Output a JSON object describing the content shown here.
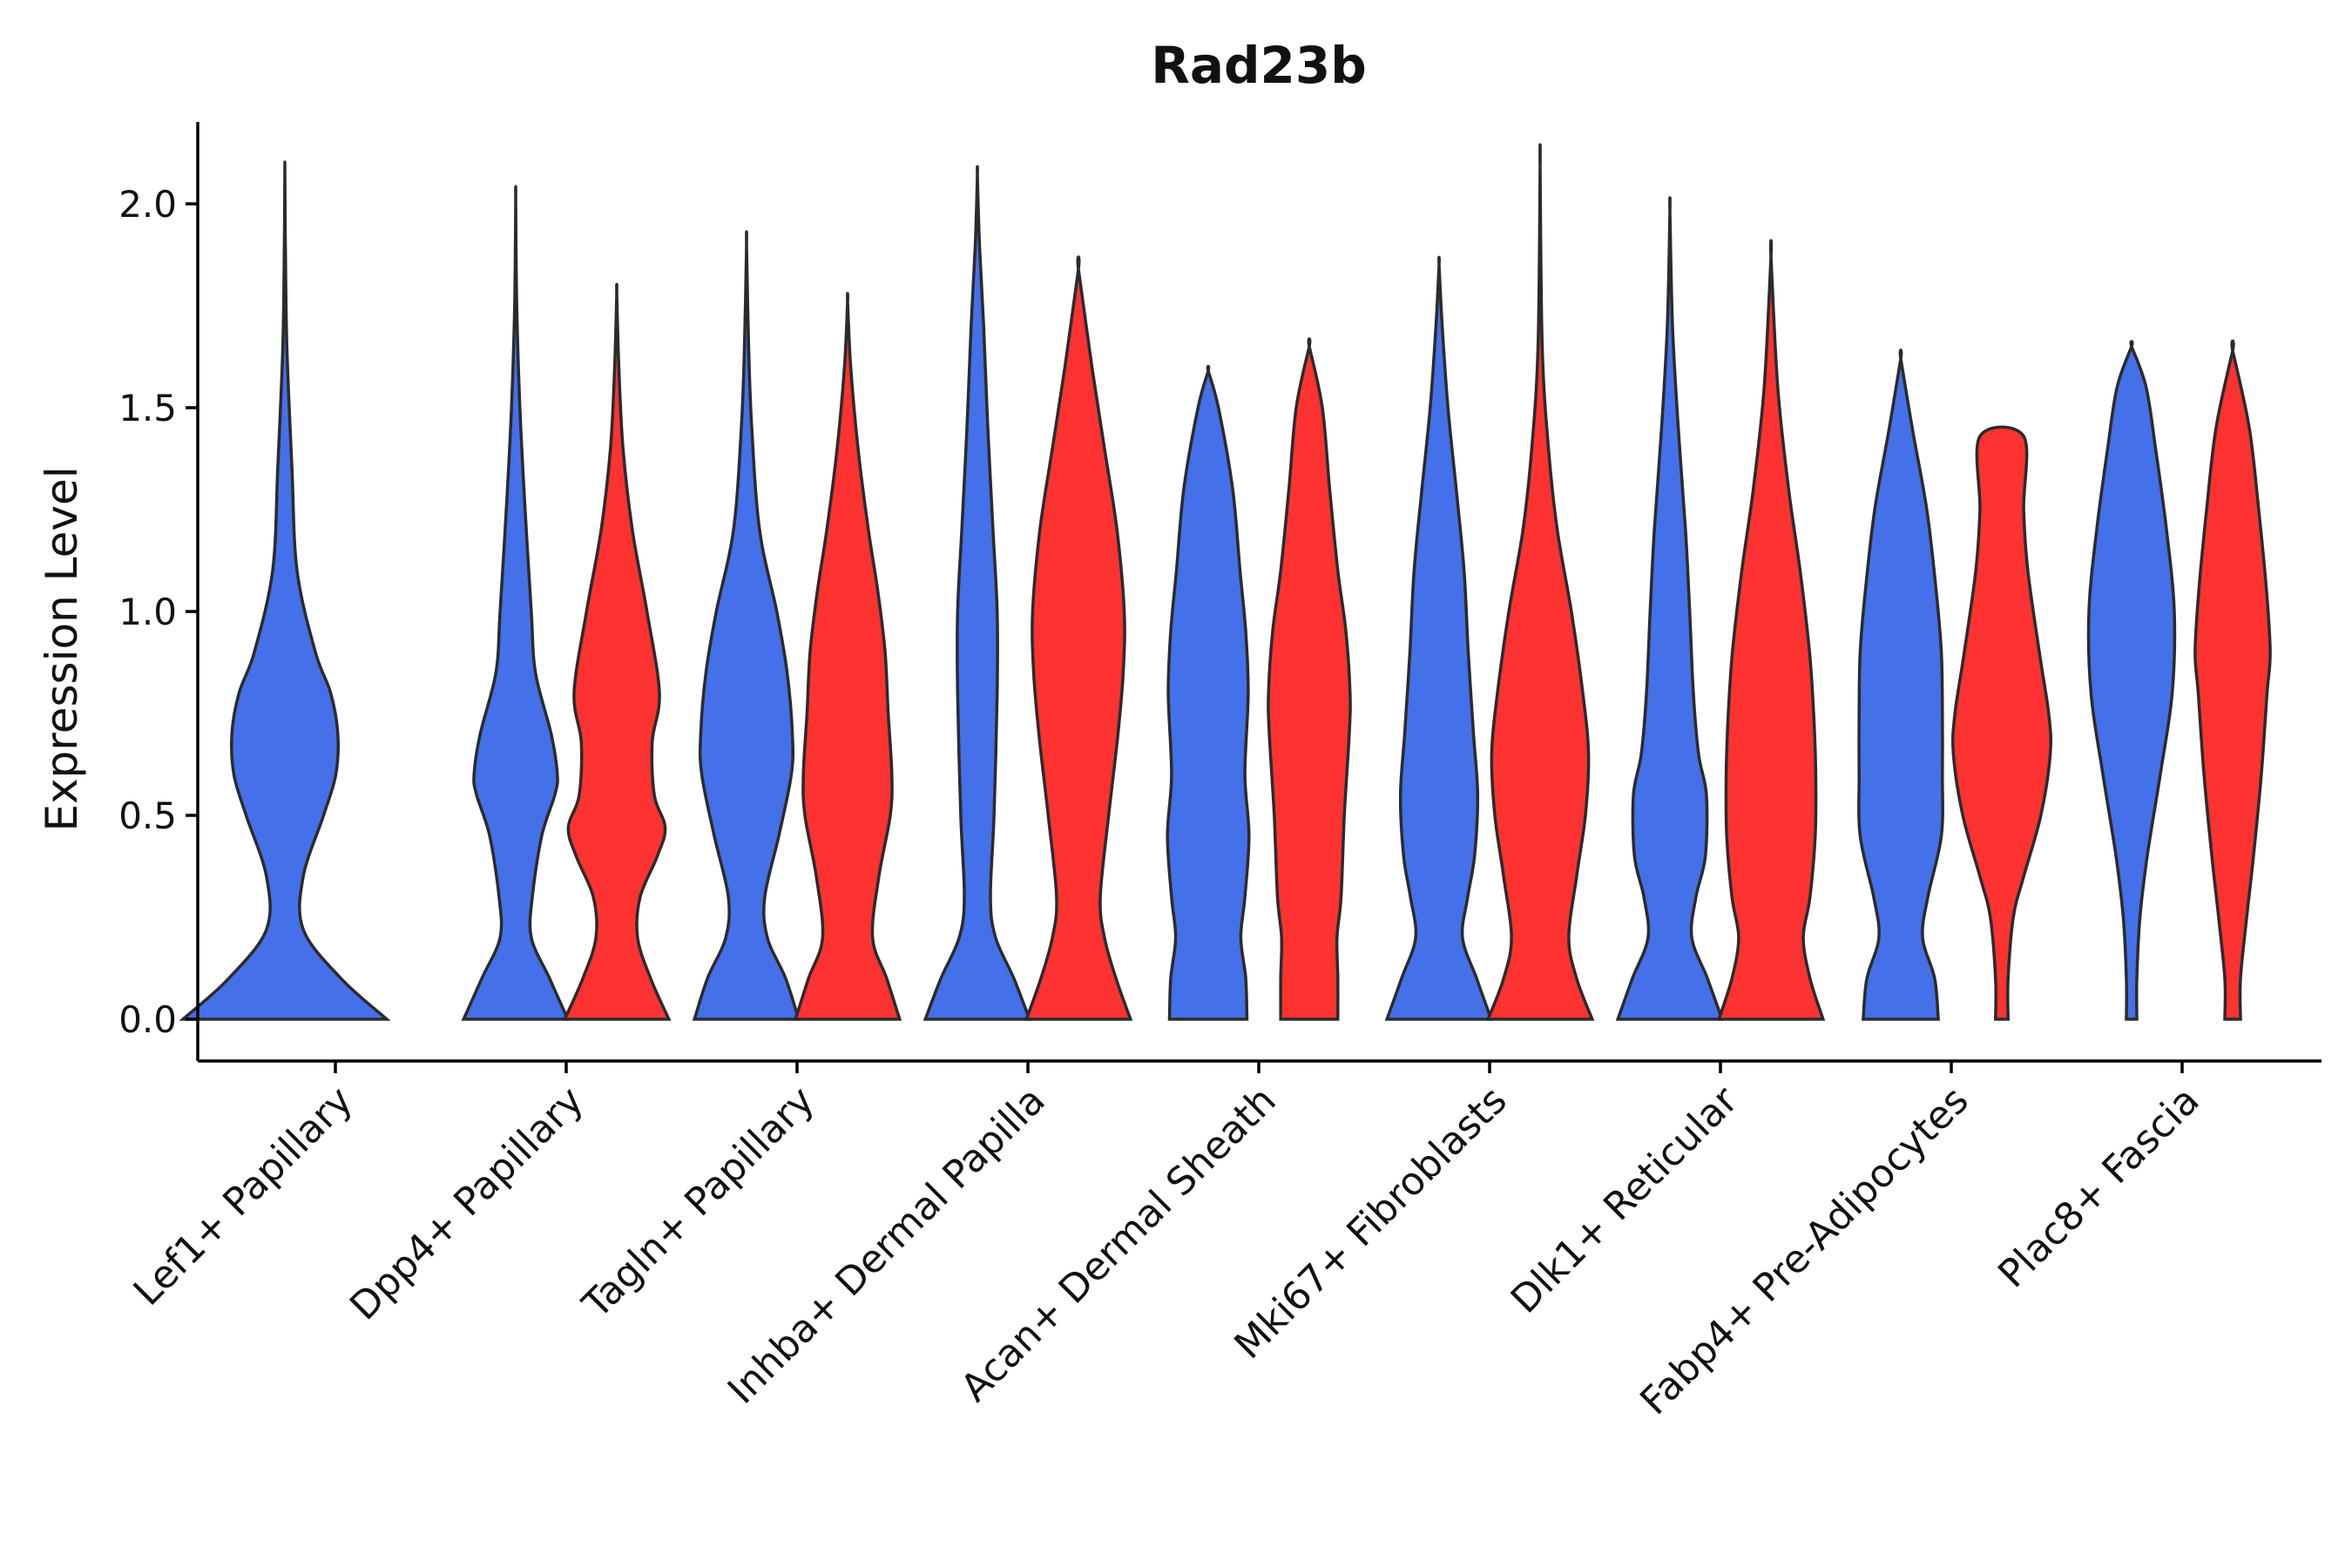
{
  "chart_data": {
    "type": "violin",
    "title": "Rad23b",
    "xlabel": "",
    "ylabel": "Expression Level",
    "ylim": [
      -0.1,
      2.2
    ],
    "yticks": [
      "0.0",
      "0.5",
      "1.0",
      "1.5",
      "2.0"
    ],
    "categories": [
      "Lef1+ Papillary",
      "Dpp4+ Papillary",
      "Tagln+ Papillary",
      "Inhba+ Dermal Papilla",
      "Acan+ Dermal Sheath",
      "Mki67+ Fibroblasts",
      "Dlk1+ Reticular",
      "Fabp4+ Pre-Adipocytes",
      "Plac8+ Fascia"
    ],
    "series_colors": [
      "#4470ea",
      "#ff3232"
    ],
    "violins": [
      {
        "category": 0,
        "split": "blue",
        "max": 2.08,
        "halfwidth": 0.45,
        "profile": [
          [
            0,
            1.0
          ],
          [
            0.1,
            0.55
          ],
          [
            0.22,
            0.18
          ],
          [
            0.35,
            0.18
          ],
          [
            0.5,
            0.38
          ],
          [
            0.6,
            0.5
          ],
          [
            0.7,
            0.52
          ],
          [
            0.8,
            0.45
          ],
          [
            0.9,
            0.3
          ],
          [
            1.1,
            0.12
          ],
          [
            1.35,
            0.07
          ],
          [
            1.65,
            0.02
          ],
          [
            1.9,
            0.005
          ],
          [
            2.08,
            0.0
          ]
        ]
      },
      {
        "category": 1,
        "split": "blue",
        "max": 2.01,
        "halfwidth": 0.23,
        "profile": [
          [
            0,
            1.0
          ],
          [
            0.1,
            0.65
          ],
          [
            0.2,
            0.3
          ],
          [
            0.3,
            0.32
          ],
          [
            0.45,
            0.5
          ],
          [
            0.55,
            0.75
          ],
          [
            0.6,
            0.8
          ],
          [
            0.7,
            0.68
          ],
          [
            0.85,
            0.38
          ],
          [
            1.0,
            0.3
          ],
          [
            1.25,
            0.18
          ],
          [
            1.5,
            0.08
          ],
          [
            1.75,
            0.02
          ],
          [
            2.01,
            0.0
          ]
        ]
      },
      {
        "category": 1,
        "split": "red",
        "max": 1.78,
        "halfwidth": 0.23,
        "profile": [
          [
            0,
            1.0
          ],
          [
            0.1,
            0.65
          ],
          [
            0.2,
            0.4
          ],
          [
            0.3,
            0.45
          ],
          [
            0.4,
            0.78
          ],
          [
            0.47,
            0.93
          ],
          [
            0.55,
            0.72
          ],
          [
            0.68,
            0.68
          ],
          [
            0.8,
            0.82
          ],
          [
            1.0,
            0.58
          ],
          [
            1.2,
            0.3
          ],
          [
            1.4,
            0.12
          ],
          [
            1.6,
            0.04
          ],
          [
            1.78,
            0.0
          ]
        ]
      },
      {
        "category": 2,
        "split": "blue",
        "max": 1.9,
        "halfwidth": 0.23,
        "profile": [
          [
            0,
            1.0
          ],
          [
            0.1,
            0.75
          ],
          [
            0.2,
            0.4
          ],
          [
            0.3,
            0.35
          ],
          [
            0.45,
            0.62
          ],
          [
            0.6,
            0.86
          ],
          [
            0.7,
            0.88
          ],
          [
            0.85,
            0.78
          ],
          [
            1.0,
            0.58
          ],
          [
            1.2,
            0.25
          ],
          [
            1.45,
            0.1
          ],
          [
            1.65,
            0.04
          ],
          [
            1.9,
            0.0
          ]
        ]
      },
      {
        "category": 2,
        "split": "red",
        "max": 1.76,
        "halfwidth": 0.23,
        "profile": [
          [
            0,
            1.0
          ],
          [
            0.1,
            0.75
          ],
          [
            0.2,
            0.48
          ],
          [
            0.35,
            0.6
          ],
          [
            0.5,
            0.82
          ],
          [
            0.6,
            0.85
          ],
          [
            0.75,
            0.78
          ],
          [
            0.9,
            0.72
          ],
          [
            1.05,
            0.58
          ],
          [
            1.2,
            0.4
          ],
          [
            1.4,
            0.2
          ],
          [
            1.6,
            0.06
          ],
          [
            1.76,
            0.0
          ]
        ]
      },
      {
        "category": 3,
        "split": "blue",
        "max": 2.07,
        "halfwidth": 0.23,
        "profile": [
          [
            0,
            1.0
          ],
          [
            0.1,
            0.7
          ],
          [
            0.2,
            0.35
          ],
          [
            0.3,
            0.25
          ],
          [
            0.5,
            0.32
          ],
          [
            0.8,
            0.38
          ],
          [
            1.0,
            0.38
          ],
          [
            1.2,
            0.3
          ],
          [
            1.45,
            0.2
          ],
          [
            1.7,
            0.12
          ],
          [
            1.9,
            0.04
          ],
          [
            2.07,
            0.0
          ]
        ]
      },
      {
        "category": 3,
        "split": "red",
        "max": 1.84,
        "halfwidth": 0.23,
        "profile": [
          [
            0,
            1.0
          ],
          [
            0.1,
            0.72
          ],
          [
            0.2,
            0.5
          ],
          [
            0.3,
            0.42
          ],
          [
            0.5,
            0.58
          ],
          [
            0.7,
            0.76
          ],
          [
            0.85,
            0.86
          ],
          [
            1.0,
            0.88
          ],
          [
            1.2,
            0.74
          ],
          [
            1.4,
            0.5
          ],
          [
            1.6,
            0.26
          ],
          [
            1.84,
            0.0
          ]
        ]
      },
      {
        "category": 4,
        "split": "blue",
        "max": 1.59,
        "halfwidth": 0.18,
        "profile": [
          [
            0,
            0.95
          ],
          [
            0.1,
            0.92
          ],
          [
            0.2,
            0.8
          ],
          [
            0.3,
            0.9
          ],
          [
            0.45,
            1.0
          ],
          [
            0.6,
            0.9
          ],
          [
            0.8,
            0.98
          ],
          [
            0.95,
            0.92
          ],
          [
            1.1,
            0.78
          ],
          [
            1.3,
            0.6
          ],
          [
            1.5,
            0.25
          ],
          [
            1.59,
            0.0
          ]
        ]
      },
      {
        "category": 4,
        "split": "red",
        "max": 1.65,
        "halfwidth": 0.18,
        "profile": [
          [
            0,
            0.7
          ],
          [
            0.1,
            0.7
          ],
          [
            0.2,
            0.68
          ],
          [
            0.3,
            0.78
          ],
          [
            0.5,
            0.86
          ],
          [
            0.7,
            0.98
          ],
          [
            0.8,
            1.0
          ],
          [
            0.95,
            0.9
          ],
          [
            1.1,
            0.7
          ],
          [
            1.3,
            0.5
          ],
          [
            1.5,
            0.32
          ],
          [
            1.65,
            0.0
          ]
        ]
      },
      {
        "category": 5,
        "split": "blue",
        "max": 1.85,
        "halfwidth": 0.23,
        "profile": [
          [
            0,
            1.0
          ],
          [
            0.1,
            0.72
          ],
          [
            0.2,
            0.45
          ],
          [
            0.3,
            0.55
          ],
          [
            0.4,
            0.68
          ],
          [
            0.55,
            0.74
          ],
          [
            0.7,
            0.66
          ],
          [
            0.9,
            0.56
          ],
          [
            1.1,
            0.48
          ],
          [
            1.3,
            0.33
          ],
          [
            1.5,
            0.17
          ],
          [
            1.7,
            0.06
          ],
          [
            1.85,
            0.0
          ]
        ]
      },
      {
        "category": 5,
        "split": "red",
        "max": 2.09,
        "halfwidth": 0.23,
        "profile": [
          [
            0,
            1.0
          ],
          [
            0.1,
            0.7
          ],
          [
            0.2,
            0.55
          ],
          [
            0.35,
            0.7
          ],
          [
            0.5,
            0.87
          ],
          [
            0.65,
            0.93
          ],
          [
            0.8,
            0.82
          ],
          [
            1.0,
            0.6
          ],
          [
            1.2,
            0.33
          ],
          [
            1.4,
            0.16
          ],
          [
            1.65,
            0.04
          ],
          [
            2.09,
            0.0
          ]
        ]
      },
      {
        "category": 6,
        "split": "blue",
        "max": 1.98,
        "halfwidth": 0.23,
        "profile": [
          [
            0,
            1.0
          ],
          [
            0.1,
            0.72
          ],
          [
            0.2,
            0.42
          ],
          [
            0.3,
            0.5
          ],
          [
            0.4,
            0.68
          ],
          [
            0.55,
            0.7
          ],
          [
            0.65,
            0.55
          ],
          [
            0.8,
            0.45
          ],
          [
            1.0,
            0.38
          ],
          [
            1.2,
            0.3
          ],
          [
            1.45,
            0.16
          ],
          [
            1.7,
            0.05
          ],
          [
            1.98,
            0.0
          ]
        ]
      },
      {
        "category": 6,
        "split": "red",
        "max": 1.87,
        "halfwidth": 0.23,
        "profile": [
          [
            0,
            1.0
          ],
          [
            0.1,
            0.75
          ],
          [
            0.2,
            0.62
          ],
          [
            0.3,
            0.75
          ],
          [
            0.45,
            0.85
          ],
          [
            0.6,
            0.86
          ],
          [
            0.75,
            0.82
          ],
          [
            0.9,
            0.74
          ],
          [
            1.1,
            0.56
          ],
          [
            1.3,
            0.34
          ],
          [
            1.55,
            0.13
          ],
          [
            1.87,
            0.0
          ]
        ]
      },
      {
        "category": 7,
        "split": "blue",
        "max": 1.62,
        "halfwidth": 0.23,
        "profile": [
          [
            0,
            0.72
          ],
          [
            0.1,
            0.65
          ],
          [
            0.2,
            0.42
          ],
          [
            0.3,
            0.52
          ],
          [
            0.45,
            0.78
          ],
          [
            0.6,
            0.8
          ],
          [
            0.75,
            0.8
          ],
          [
            0.9,
            0.78
          ],
          [
            1.05,
            0.68
          ],
          [
            1.25,
            0.5
          ],
          [
            1.45,
            0.22
          ],
          [
            1.62,
            0.0
          ]
        ]
      },
      {
        "category": 7,
        "split": "red",
        "max": 1.43,
        "halfwidth": 0.23,
        "profile": [
          [
            0,
            0.12
          ],
          [
            0.1,
            0.12
          ],
          [
            0.25,
            0.22
          ],
          [
            0.35,
            0.42
          ],
          [
            0.5,
            0.75
          ],
          [
            0.65,
            0.93
          ],
          [
            0.75,
            0.9
          ],
          [
            0.9,
            0.72
          ],
          [
            1.1,
            0.5
          ],
          [
            1.25,
            0.42
          ],
          [
            1.43,
            0.42
          ]
        ]
      },
      {
        "category": 8,
        "split": "blue",
        "max": 1.65,
        "halfwidth": 0.23,
        "profile": [
          [
            0,
            0.1
          ],
          [
            0.1,
            0.1
          ],
          [
            0.25,
            0.16
          ],
          [
            0.4,
            0.3
          ],
          [
            0.6,
            0.55
          ],
          [
            0.8,
            0.78
          ],
          [
            1.0,
            0.82
          ],
          [
            1.2,
            0.67
          ],
          [
            1.4,
            0.46
          ],
          [
            1.55,
            0.28
          ],
          [
            1.65,
            0.0
          ]
        ]
      },
      {
        "category": 8,
        "split": "red",
        "max": 1.64,
        "halfwidth": 0.23,
        "profile": [
          [
            0,
            0.15
          ],
          [
            0.1,
            0.15
          ],
          [
            0.25,
            0.27
          ],
          [
            0.4,
            0.4
          ],
          [
            0.6,
            0.55
          ],
          [
            0.8,
            0.66
          ],
          [
            0.9,
            0.72
          ],
          [
            1.05,
            0.65
          ],
          [
            1.25,
            0.5
          ],
          [
            1.45,
            0.32
          ],
          [
            1.64,
            0.0
          ]
        ]
      }
    ]
  }
}
